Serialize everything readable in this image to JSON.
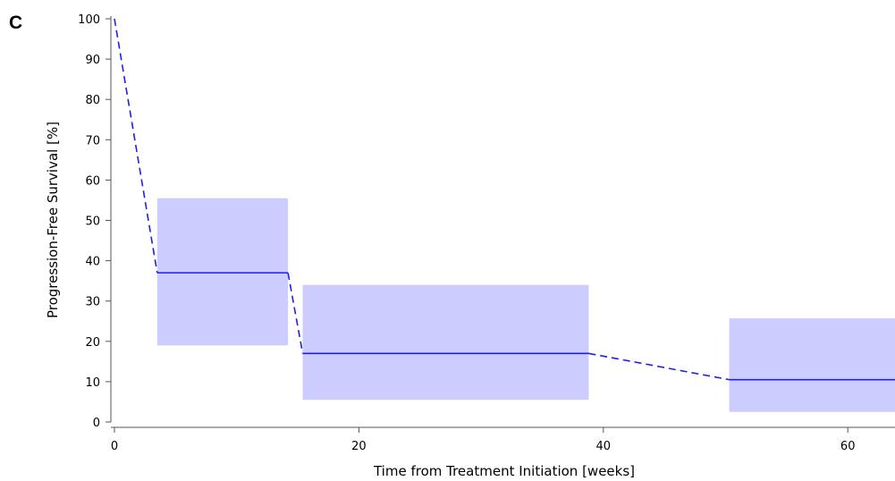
{
  "panel_label": "C",
  "colors": {
    "line": "#1f1fe6",
    "band": "#ccccff",
    "axis": "#555555"
  },
  "chart_data": {
    "type": "line",
    "xlabel": "Time from Treatment Initiation [weeks]",
    "ylabel": "Progression-Free Survival [%]",
    "xlim": [
      0,
      64
    ],
    "ylim": [
      0,
      100
    ],
    "x_ticks": [
      0,
      20,
      40,
      60
    ],
    "y_ticks": [
      0,
      10,
      20,
      30,
      40,
      50,
      60,
      70,
      80,
      90,
      100
    ],
    "grid": false,
    "series": [
      {
        "solid_segments": [
          {
            "x": [
              3.5,
              14.2
            ],
            "y": [
              37,
              37
            ]
          },
          {
            "x": [
              15.4,
              38.8
            ],
            "y": [
              17,
              17
            ]
          },
          {
            "x": [
              50.3,
              64
            ],
            "y": [
              10.5,
              10.5
            ]
          }
        ],
        "dashed_segments": [
          {
            "x": [
              0,
              3.5
            ],
            "y": [
              100,
              37
            ]
          },
          {
            "x": [
              14.2,
              15.4
            ],
            "y": [
              37,
              17
            ]
          },
          {
            "x": [
              38.8,
              50.3
            ],
            "y": [
              17,
              10.5
            ]
          }
        ],
        "confidence_bands": [
          {
            "x": [
              3.5,
              14.2
            ],
            "y_low": 19,
            "y_high": 55.5
          },
          {
            "x": [
              15.4,
              38.8
            ],
            "y_low": 5.5,
            "y_high": 34
          },
          {
            "x": [
              50.3,
              64
            ],
            "y_low": 2.5,
            "y_high": 25.7
          }
        ]
      }
    ]
  }
}
